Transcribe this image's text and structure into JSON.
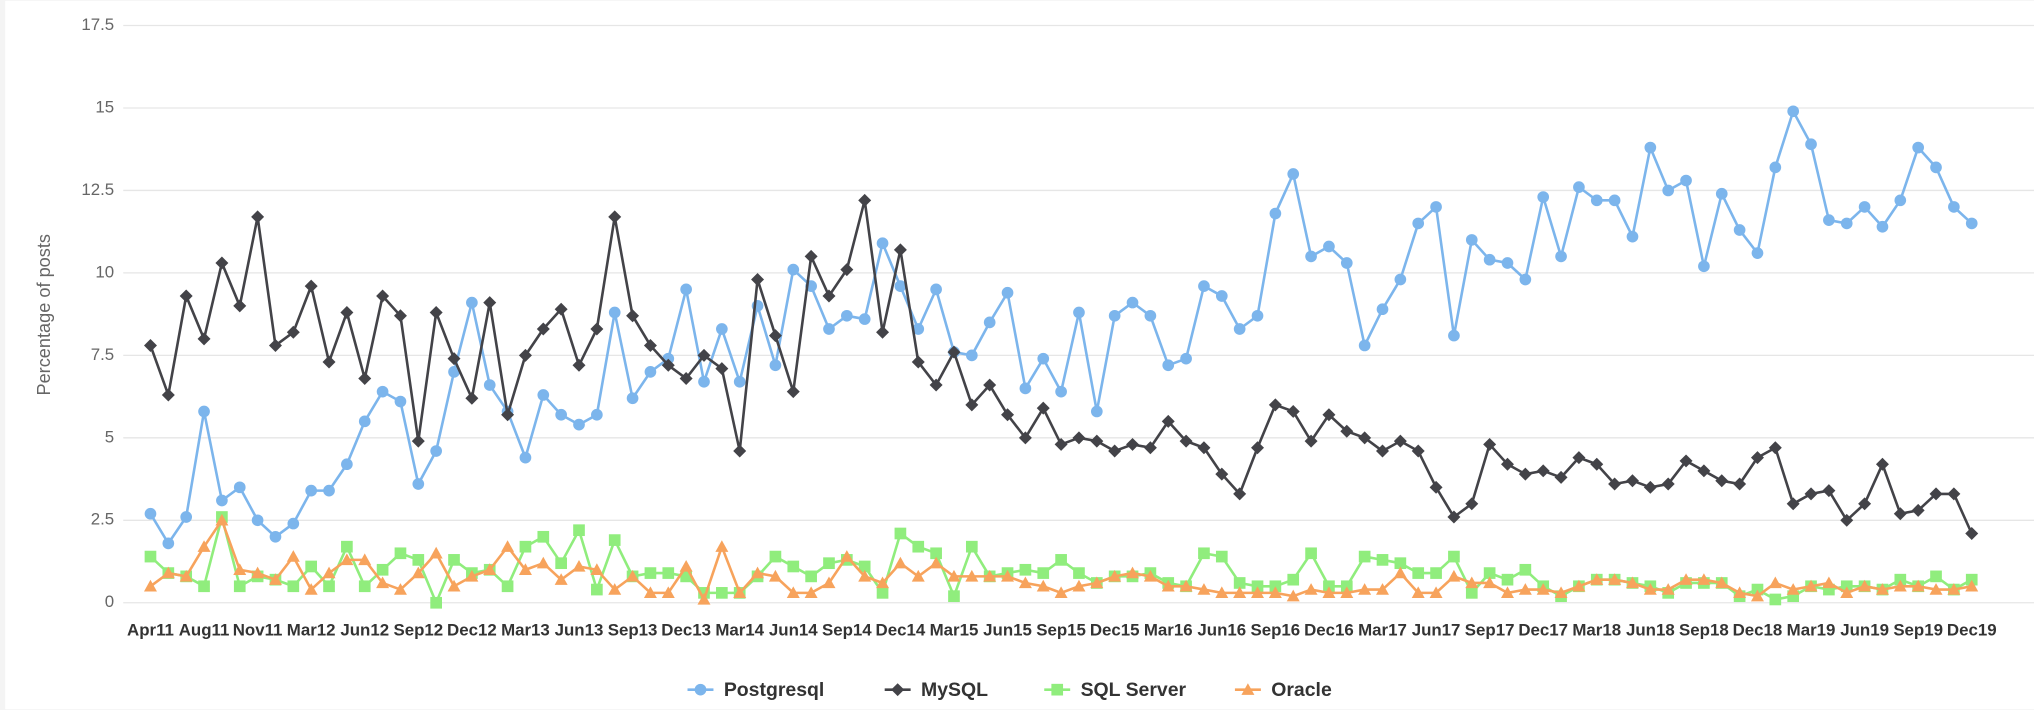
{
  "chart_data": {
    "type": "line",
    "y_label": "Percentage of posts",
    "categories": [
      "Apr11",
      null,
      null,
      "Aug11",
      null,
      null,
      "Nov11",
      null,
      null,
      "Mar12",
      null,
      null,
      "Jun12",
      null,
      null,
      "Sep12",
      null,
      null,
      "Dec12",
      null,
      null,
      "Mar13",
      null,
      null,
      "Jun13",
      null,
      null,
      "Sep13",
      null,
      null,
      "Dec13",
      null,
      null,
      "Mar14",
      null,
      null,
      "Jun14",
      null,
      null,
      "Sep14",
      null,
      null,
      "Dec14",
      null,
      null,
      "Mar15",
      null,
      null,
      "Jun15",
      null,
      null,
      "Sep15",
      null,
      null,
      "Dec15",
      null,
      null,
      "Mar16",
      null,
      null,
      "Jun16",
      null,
      null,
      "Sep16",
      null,
      null,
      "Dec16",
      null,
      null,
      "Mar17",
      null,
      null,
      "Jun17",
      null,
      null,
      "Sep17",
      null,
      null,
      "Dec17",
      null,
      null,
      "Mar18",
      null,
      null,
      "Jun18",
      null,
      null,
      "Sep18",
      null,
      null,
      "Dec18",
      null,
      null,
      "Mar19",
      null,
      null,
      "Jun19",
      null,
      null,
      "Sep19",
      null,
      null,
      "Dec19"
    ],
    "series": [
      {
        "name": "Postgresql",
        "color": "#7cb5ec",
        "marker": "circle",
        "values": [
          2.7,
          1.8,
          2.6,
          5.8,
          3.1,
          3.5,
          2.5,
          2.0,
          2.4,
          3.4,
          3.4,
          4.2,
          5.5,
          6.4,
          6.1,
          3.6,
          4.6,
          7.0,
          9.1,
          6.6,
          5.8,
          4.4,
          6.3,
          5.7,
          5.4,
          5.7,
          8.8,
          6.2,
          7.0,
          7.4,
          9.5,
          6.7,
          8.3,
          6.7,
          9.0,
          7.2,
          10.1,
          9.6,
          8.3,
          8.7,
          8.6,
          10.9,
          9.6,
          8.3,
          9.5,
          7.6,
          7.5,
          8.5,
          9.4,
          6.5,
          7.4,
          6.4,
          8.8,
          5.8,
          8.7,
          9.1,
          8.7,
          7.2,
          7.4,
          9.6,
          9.3,
          8.3,
          8.7,
          11.8,
          13.0,
          10.5,
          10.8,
          10.3,
          7.8,
          8.9,
          9.8,
          11.5,
          12.0,
          8.1,
          11.0,
          10.4,
          10.3,
          9.8,
          12.3,
          10.5,
          12.6,
          12.2,
          12.2,
          11.1,
          13.8,
          12.5,
          12.8,
          10.2,
          12.4,
          11.3,
          10.6,
          13.2,
          14.9,
          13.9,
          11.6,
          11.5,
          12.0,
          11.4,
          12.2,
          13.8,
          13.2,
          12.0,
          11.5
        ]
      },
      {
        "name": "MySQL",
        "color": "#434348",
        "marker": "diamond",
        "values": [
          7.8,
          6.3,
          9.3,
          8.0,
          10.3,
          9.0,
          11.7,
          7.8,
          8.2,
          9.6,
          7.3,
          8.8,
          6.8,
          9.3,
          8.7,
          4.9,
          8.8,
          7.4,
          6.2,
          9.1,
          5.7,
          7.5,
          8.3,
          8.9,
          7.2,
          8.3,
          11.7,
          8.7,
          7.8,
          7.2,
          6.8,
          7.5,
          7.1,
          4.6,
          9.8,
          8.1,
          6.4,
          10.5,
          9.3,
          10.1,
          12.2,
          8.2,
          10.7,
          7.3,
          6.6,
          7.6,
          6.0,
          6.6,
          5.7,
          5.0,
          5.9,
          4.8,
          5.0,
          4.9,
          4.6,
          4.8,
          4.7,
          5.5,
          4.9,
          4.7,
          3.9,
          3.3,
          4.7,
          6.0,
          5.8,
          4.9,
          5.7,
          5.2,
          5.0,
          4.6,
          4.9,
          4.6,
          3.5,
          2.6,
          3.0,
          4.8,
          4.2,
          3.9,
          4.0,
          3.8,
          4.4,
          4.2,
          3.6,
          3.7,
          3.5,
          3.6,
          4.3,
          4.0,
          3.7,
          3.6,
          4.4,
          4.7,
          3.0,
          3.3,
          3.4,
          2.5,
          3.0,
          4.2,
          2.7,
          2.8,
          3.3,
          3.3,
          2.1
        ]
      },
      {
        "name": "SQL Server",
        "color": "#90ed7d",
        "marker": "square",
        "values": [
          1.4,
          0.9,
          0.8,
          0.5,
          2.6,
          0.5,
          0.8,
          0.7,
          0.5,
          1.1,
          0.5,
          1.7,
          0.5,
          1.0,
          1.5,
          1.3,
          0.0,
          1.3,
          0.9,
          1.0,
          0.5,
          1.7,
          2.0,
          1.2,
          2.2,
          0.4,
          1.9,
          0.8,
          0.9,
          0.9,
          0.8,
          0.3,
          0.3,
          0.3,
          0.8,
          1.4,
          1.1,
          0.8,
          1.2,
          1.3,
          1.1,
          0.3,
          2.1,
          1.7,
          1.5,
          0.2,
          1.7,
          0.8,
          0.9,
          1.0,
          0.9,
          1.3,
          0.9,
          0.6,
          0.8,
          0.8,
          0.9,
          0.6,
          0.5,
          1.5,
          1.4,
          0.6,
          0.5,
          0.5,
          0.7,
          1.5,
          0.5,
          0.5,
          1.4,
          1.3,
          1.2,
          0.9,
          0.9,
          1.4,
          0.3,
          0.9,
          0.7,
          1.0,
          0.5,
          0.2,
          0.5,
          0.7,
          0.7,
          0.6,
          0.5,
          0.3,
          0.6,
          0.6,
          0.6,
          0.2,
          0.4,
          0.1,
          0.2,
          0.5,
          0.4,
          0.5,
          0.5,
          0.4,
          0.7,
          0.5,
          0.8,
          0.4,
          0.7
        ]
      },
      {
        "name": "Oracle",
        "color": "#f7a35c",
        "marker": "triangle",
        "values": [
          0.5,
          0.9,
          0.8,
          1.7,
          2.5,
          1.0,
          0.9,
          0.7,
          1.4,
          0.4,
          0.9,
          1.3,
          1.3,
          0.6,
          0.4,
          0.9,
          1.5,
          0.5,
          0.8,
          1.0,
          1.7,
          1.0,
          1.2,
          0.7,
          1.1,
          1.0,
          0.4,
          0.8,
          0.3,
          0.3,
          1.1,
          0.1,
          1.7,
          0.3,
          0.9,
          0.8,
          0.3,
          0.3,
          0.6,
          1.4,
          0.8,
          0.6,
          1.2,
          0.8,
          1.2,
          0.8,
          0.8,
          0.8,
          0.8,
          0.6,
          0.5,
          0.3,
          0.5,
          0.6,
          0.8,
          0.9,
          0.8,
          0.5,
          0.5,
          0.4,
          0.3,
          0.3,
          0.3,
          0.3,
          0.2,
          0.4,
          0.3,
          0.3,
          0.4,
          0.4,
          0.9,
          0.3,
          0.3,
          0.8,
          0.6,
          0.6,
          0.3,
          0.4,
          0.4,
          0.3,
          0.5,
          0.7,
          0.7,
          0.6,
          0.4,
          0.4,
          0.7,
          0.7,
          0.6,
          0.3,
          0.2,
          0.6,
          0.4,
          0.5,
          0.6,
          0.3,
          0.5,
          0.4,
          0.5,
          0.5,
          0.4,
          0.4,
          0.5
        ]
      }
    ],
    "ylim": [
      0,
      17.5
    ],
    "yticks": [
      0,
      2.5,
      5,
      7.5,
      10,
      12.5,
      15,
      17.5
    ],
    "grid": true,
    "legend": "bottom"
  }
}
